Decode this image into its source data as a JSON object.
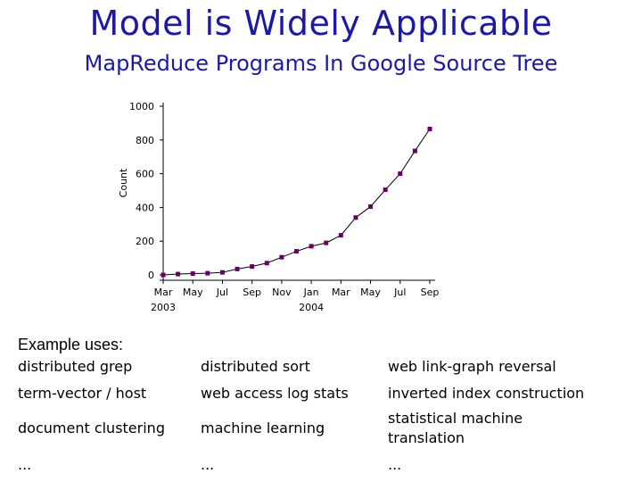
{
  "slide": {
    "title": "Model is Widely Applicable",
    "subtitle": "MapReduce Programs In Google Source Tree"
  },
  "chart_data": {
    "type": "line",
    "ylabel": "Count",
    "ylim": [
      0,
      1000
    ],
    "y_ticks": [
      "0",
      "200",
      "400",
      "600",
      "800",
      "1000"
    ],
    "x_ticks": [
      "Mar",
      "May",
      "Jul",
      "Sep",
      "Nov",
      "Jan",
      "Mar",
      "May",
      "Jul",
      "Sep"
    ],
    "x_year_labels": [
      "2003",
      "2004"
    ],
    "marker_color": "#660066",
    "x": [
      0,
      1,
      2,
      3,
      4,
      5,
      6,
      7,
      8,
      9,
      10,
      11,
      12,
      13,
      14,
      15,
      16,
      17,
      18
    ],
    "values": [
      0,
      5,
      8,
      10,
      15,
      35,
      50,
      70,
      105,
      140,
      170,
      190,
      235,
      340,
      405,
      505,
      600,
      735,
      865
    ]
  },
  "uses": {
    "heading": "Example uses:",
    "rows": [
      [
        "distributed grep",
        "distributed sort",
        "web link-graph reversal"
      ],
      [
        "term-vector / host",
        "web access log stats",
        "inverted index construction"
      ],
      [
        "document clustering",
        "machine learning",
        "statistical machine translation"
      ],
      [
        "...",
        "...",
        "..."
      ]
    ]
  }
}
